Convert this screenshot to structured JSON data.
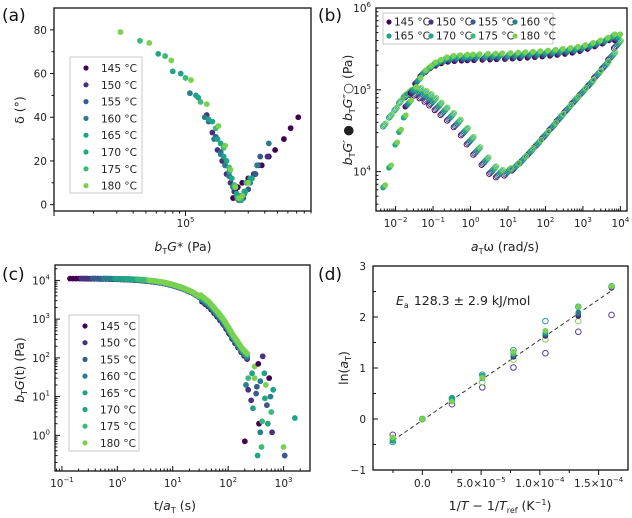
{
  "temperatures": [
    "145 °C",
    "150 °C",
    "155 °C",
    "160 °C",
    "165 °C",
    "170 °C",
    "175 °C",
    "180 °C"
  ],
  "colors": [
    "#440154",
    "#46327e",
    "#365c8d",
    "#277f8e",
    "#1fa187",
    "#21a685",
    "#3bbb75",
    "#7ad151"
  ],
  "chart_data": [
    {
      "panel": "(a)",
      "type": "scatter",
      "title": "",
      "xlabel": "b_T G* (Pa)",
      "ylabel": "δ (°)",
      "xscale": "log",
      "xlim": [
        10000,
        900000
      ],
      "ylim": [
        -2,
        90
      ],
      "xticks": [
        {
          "value": 100000,
          "label": "10^5"
        }
      ],
      "yticks": [
        0,
        20,
        40,
        60,
        80
      ],
      "legend": "center-left",
      "series": [
        {
          "name": "145 °C",
          "x": [
            230000,
            240000,
            250000,
            270000,
            300000,
            340000,
            380000,
            430000,
            480000,
            560000,
            630000,
            720000
          ],
          "y": [
            3,
            6,
            8,
            10,
            12,
            14,
            18,
            22,
            25,
            30,
            35,
            40
          ]
        },
        {
          "name": "150 °C",
          "x": [
            145000,
            160000,
            175000,
            190000,
            205000,
            220000,
            235000,
            245000,
            255000,
            265000,
            290000,
            330000,
            360000,
            420000
          ],
          "y": [
            41,
            33,
            25,
            20,
            14,
            10,
            6,
            3,
            2,
            4,
            10,
            14,
            18,
            22
          ]
        },
        {
          "name": "155 °C",
          "x": [
            150000,
            170000,
            185000,
            200000,
            215000,
            230000,
            245000,
            260000,
            275000,
            300000,
            340000,
            370000
          ],
          "y": [
            38,
            31,
            24,
            18,
            13,
            8,
            4,
            2,
            3,
            7,
            14,
            22
          ]
        },
        {
          "name": "160 °C",
          "x": [
            108000,
            140000,
            165000,
            185000,
            200000,
            215000,
            230000,
            245000,
            260000,
            280000,
            310000,
            350000,
            430000
          ],
          "y": [
            51,
            40,
            30,
            23,
            18,
            13,
            8,
            4,
            2,
            5,
            10,
            18,
            28
          ]
        },
        {
          "name": "165 °C",
          "x": [
            92000,
            120000,
            150000,
            175000,
            195000,
            215000,
            235000,
            250000,
            265000,
            285000,
            320000
          ],
          "y": [
            60,
            50,
            39,
            30,
            22,
            15,
            8,
            3,
            2,
            6,
            12
          ]
        },
        {
          "name": "170 °C",
          "x": [
            62000,
            80000,
            125000,
            160000,
            185000,
            205000,
            225000,
            245000,
            260000,
            280000,
            310000
          ],
          "y": [
            69,
            61,
            49,
            38,
            28,
            20,
            12,
            5,
            2,
            6,
            12
          ]
        },
        {
          "name": "175 °C",
          "x": [
            45000,
            70000,
            100000,
            130000,
            170000,
            195000,
            215000,
            235000,
            250000,
            265000,
            290000
          ],
          "y": [
            75,
            68,
            58,
            47,
            35,
            26,
            17,
            9,
            3,
            3,
            10
          ]
        },
        {
          "name": "180 °C",
          "x": [
            32000,
            53000,
            78000,
            110000,
            145000,
            178000,
            200000,
            220000,
            240000,
            255000,
            270000,
            300000
          ],
          "y": [
            79,
            74,
            66,
            57,
            46,
            36,
            27,
            16,
            8,
            3,
            4,
            10
          ]
        }
      ]
    },
    {
      "panel": "(b)",
      "type": "scatter",
      "title": "",
      "xlabel": "a_T ω (rad/s)",
      "ylabel": "b_T G′ ● b_T G″ ○ (Pa)",
      "xscale": "log",
      "yscale": "log",
      "xlim": [
        0.003,
        15000
      ],
      "ylim": [
        3300,
        1000000
      ],
      "xticks": [
        {
          "value": 0.01,
          "label": "10^-2"
        },
        {
          "value": 0.1,
          "label": "10^-1"
        },
        {
          "value": 1,
          "label": "10^0"
        },
        {
          "value": 10,
          "label": "10^1"
        },
        {
          "value": 100,
          "label": "10^2"
        },
        {
          "value": 1000,
          "label": "10^3"
        },
        {
          "value": 10000,
          "label": "10^4"
        }
      ],
      "yticks": [
        {
          "value": 10000,
          "label": "10^4"
        },
        {
          "value": 100000,
          "label": "10^5"
        },
        {
          "value": 1000000,
          "label": "10^6"
        }
      ],
      "legend": "top-left, 2 rows × 4 columns",
      "storage_modulus_Gp": {
        "x": [
          0.0045,
          0.0065,
          0.0095,
          0.012,
          0.016,
          0.022,
          0.03,
          0.04,
          0.055,
          0.075,
          0.1,
          0.14,
          0.2,
          0.3,
          0.45,
          0.7,
          1,
          1.5,
          2.5,
          4,
          6,
          10,
          16,
          25,
          40,
          63,
          100,
          160,
          250,
          400,
          630,
          1000,
          1600,
          2500,
          4000,
          6000,
          8500
        ],
        "y": [
          6300,
          11000,
          21000,
          30000,
          45000,
          68000,
          100000,
          130000,
          160000,
          180000,
          200000,
          215000,
          230000,
          240000,
          245000,
          248000,
          250000,
          252000,
          254000,
          256000,
          258000,
          260000,
          263000,
          266000,
          270000,
          274000,
          279000,
          285000,
          292000,
          300000,
          310000,
          325000,
          345000,
          370000,
          400000,
          440000,
          440000
        ]
      },
      "loss_modulus_Gpp": {
        "x": [
          0.0045,
          0.0065,
          0.009,
          0.012,
          0.016,
          0.022,
          0.03,
          0.04,
          0.055,
          0.075,
          0.1,
          0.14,
          0.2,
          0.3,
          0.45,
          0.7,
          1,
          1.5,
          2.5,
          4,
          6,
          10,
          16,
          25,
          40,
          63,
          100,
          160,
          250,
          400,
          630,
          1000,
          1600,
          2500,
          4000,
          6000,
          8500
        ],
        "y": [
          35000,
          45000,
          55000,
          68000,
          80000,
          90000,
          97000,
          95000,
          88000,
          80000,
          72000,
          63000,
          55000,
          47000,
          39000,
          31000,
          24000,
          18000,
          13500,
          10500,
          9500,
          10000,
          11500,
          14000,
          17500,
          22000,
          28000,
          36000,
          46000,
          59000,
          75000,
          95000,
          120000,
          155000,
          200000,
          260000,
          360000
        ]
      }
    },
    {
      "panel": "(c)",
      "type": "scatter",
      "title": "",
      "xlabel": "t / a_T (s)",
      "ylabel": "b_T G(t) (Pa)",
      "xscale": "log",
      "yscale": "log",
      "xlim": [
        0.075,
        3000
      ],
      "ylim": [
        0.12,
        25000
      ],
      "xticks": [
        {
          "value": 0.1,
          "label": "10^-1"
        },
        {
          "value": 1,
          "label": "10^0"
        },
        {
          "value": 10,
          "label": "10^1"
        },
        {
          "value": 100,
          "label": "10^2"
        },
        {
          "value": 1000,
          "label": "10^3"
        }
      ],
      "yticks": [
        {
          "value": 1,
          "label": "10^0"
        },
        {
          "value": 10,
          "label": "10^1"
        },
        {
          "value": 100,
          "label": "10^2"
        },
        {
          "value": 1000,
          "label": "10^3"
        },
        {
          "value": 10000,
          "label": "10^4"
        }
      ],
      "legend": "center-left",
      "master_curve": {
        "x": [
          0.14,
          0.2,
          0.3,
          0.45,
          0.7,
          1,
          1.5,
          2.2,
          3,
          4.5,
          7,
          10,
          15,
          22,
          30,
          45,
          60,
          80,
          100,
          120,
          150,
          180,
          220,
          260
        ],
        "y": [
          11500,
          11500,
          11400,
          11300,
          11200,
          11000,
          10800,
          10500,
          10100,
          9500,
          8600,
          7600,
          6300,
          5000,
          3800,
          2400,
          1500,
          900,
          550,
          350,
          220,
          150,
          110,
          90
        ]
      },
      "tail_scatter": {
        "x": [
          200,
          210,
          230,
          260,
          280,
          300,
          320,
          340,
          360,
          380,
          400,
          420,
          450,
          480,
          500,
          520,
          550,
          580,
          600,
          620,
          650,
          1000,
          1050,
          1600,
          350,
          380,
          410,
          230,
          270,
          300,
          330,
          460
        ],
        "y": [
          0.7,
          20,
          30,
          8,
          5,
          60,
          12,
          0.3,
          2,
          1.2,
          0.5,
          110,
          40,
          20,
          6,
          2,
          30,
          10,
          4,
          1.2,
          15,
          0.5,
          0.3,
          2.8,
          70,
          25,
          2.3,
          15,
          40,
          30,
          18,
          9
        ]
      }
    },
    {
      "panel": "(d)",
      "type": "scatter",
      "title": "",
      "xlabel": "1/T − 1/T_ref (K^-1)",
      "ylabel": "ln(a_T)",
      "xlim": [
        -4.2e-05,
        0.000175
      ],
      "ylim": [
        -1,
        3
      ],
      "xticks": [
        {
          "value": 0,
          "label": "0.0"
        },
        {
          "value": 5e-05,
          "label": "5.0×10^-5"
        },
        {
          "value": 0.0001,
          "label": "1.0×10^-4"
        },
        {
          "value": 0.00015,
          "label": "1.5×10^-4"
        }
      ],
      "yticks": [
        -1,
        0,
        1,
        2,
        3
      ],
      "annotation": {
        "symbol": "E_a",
        "text": "128.3 ± 2.9 kJ/mol"
      },
      "fit_line": {
        "x": [
          -2.5e-05,
          0.00016
        ],
        "y": [
          -0.42,
          2.5
        ]
      },
      "x": [
        -2.52e-05,
        0,
        2.52e-05,
        5.1e-05,
        7.75e-05,
        0.0001047,
        0.0001327,
        0.000161
      ],
      "filled_series": [
        {
          "name": "145 °C",
          "y": [
            -0.4,
            0,
            0.38,
            0.8,
            1.22,
            1.63,
            2.02,
            2.57
          ]
        },
        {
          "name": "150 °C",
          "y": [
            -0.38,
            0,
            0.38,
            0.8,
            1.23,
            1.64,
            2.04,
            2.58
          ]
        },
        {
          "name": "155 °C",
          "y": [
            -0.41,
            0,
            0.39,
            0.82,
            1.25,
            1.66,
            2.07,
            2.59
          ]
        },
        {
          "name": "160 °C",
          "y": [
            -0.42,
            0,
            0.4,
            0.84,
            1.27,
            1.68,
            2.09,
            2.6
          ]
        },
        {
          "name": "165 °C",
          "y": [
            -0.43,
            0,
            0.4,
            0.85,
            1.3,
            1.7,
            2.2,
            2.6
          ]
        },
        {
          "name": "170 °C",
          "y": [
            -0.4,
            0,
            0.36,
            0.83,
            1.3,
            1.72,
            2.21,
            2.61
          ]
        },
        {
          "name": "175 °C",
          "y": [
            -0.37,
            0,
            0.35,
            0.8,
            1.28,
            1.73,
            2.21,
            2.6
          ]
        },
        {
          "name": "180 °C",
          "y": [
            -0.36,
            0,
            0.34,
            0.81,
            1.32,
            1.73,
            2.2,
            2.6
          ]
        }
      ],
      "open_series": [
        {
          "name": "purple",
          "color": "#5b3a9a",
          "y": [
            -0.31,
            0,
            0.29,
            0.62,
            1.01,
            1.29,
            1.71,
            2.04
          ]
        },
        {
          "name": "teal",
          "color": "#2a9a9a",
          "y": [
            -0.45,
            0,
            0.41,
            0.87,
            1.35,
            1.92,
            2.2,
            2.6
          ]
        },
        {
          "name": "green",
          "color": "#7ad151",
          "y": [
            -0.39,
            0,
            0.36,
            0.72,
            1.16,
            1.56,
            1.92,
            2.6
          ]
        }
      ]
    }
  ]
}
